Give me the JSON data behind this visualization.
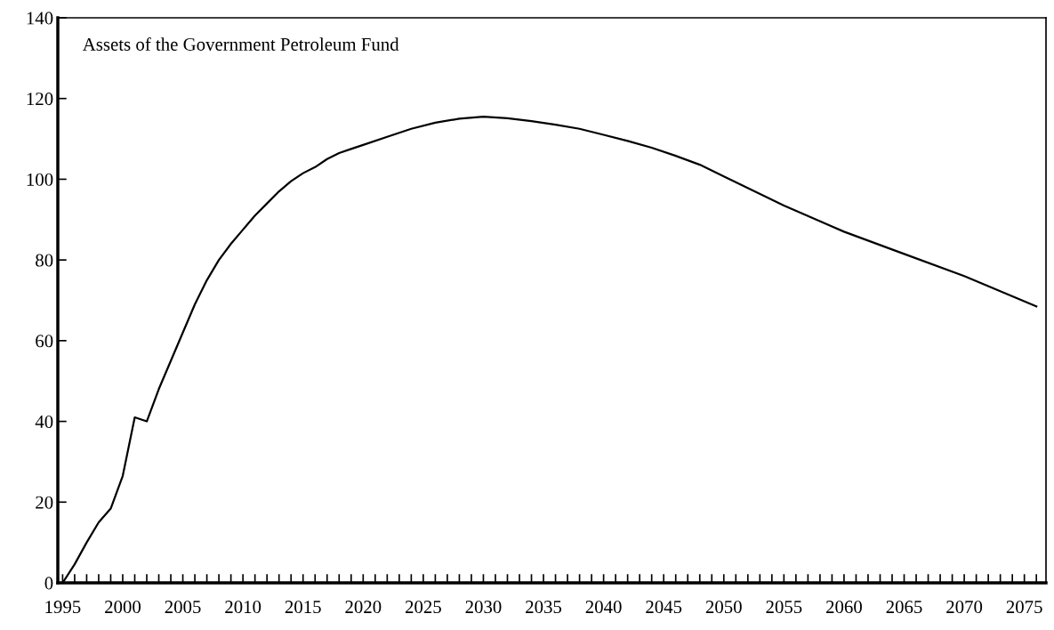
{
  "chart_data": {
    "type": "line",
    "title": "Assets of the Government Petroleum Fund",
    "x": [
      1995,
      1996,
      1997,
      1998,
      1999,
      2000,
      2001,
      2002,
      2003,
      2004,
      2005,
      2006,
      2007,
      2008,
      2009,
      2010,
      2011,
      2012,
      2013,
      2014,
      2015,
      2016,
      2017,
      2018,
      2019,
      2020,
      2022,
      2024,
      2026,
      2028,
      2030,
      2032,
      2034,
      2036,
      2038,
      2040,
      2042,
      2044,
      2046,
      2048,
      2050,
      2055,
      2060,
      2065,
      2070,
      2076
    ],
    "series": [
      {
        "color": "#000000",
        "values": [
          0,
          4.6,
          10,
          15,
          18.4,
          26.5,
          41,
          40,
          48,
          55,
          62,
          69,
          75,
          80,
          84,
          87.5,
          91,
          94,
          97,
          99.5,
          101.5,
          103,
          105,
          106.5,
          107.5,
          108.5,
          110.5,
          112.5,
          114,
          115,
          115.5,
          115.1,
          114.4,
          113.5,
          112.5,
          111,
          109.5,
          107.8,
          105.8,
          103.6,
          100.7,
          93.5,
          87,
          81.5,
          76,
          68.5
        ]
      }
    ],
    "xlim": [
      1994.6,
      2076.8
    ],
    "ylim": [
      0,
      140
    ],
    "xticks": [
      1995,
      {
        "value": 1996,
        "label": null
      },
      {
        "value": 1997,
        "label": null
      },
      {
        "value": 1998,
        "label": null
      },
      {
        "value": 1999,
        "label": null
      },
      2000,
      {
        "value": 2001,
        "label": null
      },
      {
        "value": 2002,
        "label": null
      },
      {
        "value": 2003,
        "label": null
      },
      {
        "value": 2004,
        "label": null
      },
      2005,
      {
        "value": 2006,
        "label": null
      },
      {
        "value": 2007,
        "label": null
      },
      {
        "value": 2008,
        "label": null
      },
      {
        "value": 2009,
        "label": null
      },
      2010,
      {
        "value": 2011,
        "label": null
      },
      {
        "value": 2012,
        "label": null
      },
      {
        "value": 2013,
        "label": null
      },
      {
        "value": 2014,
        "label": null
      },
      2015,
      {
        "value": 2016,
        "label": null
      },
      {
        "value": 2017,
        "label": null
      },
      {
        "value": 2018,
        "label": null
      },
      {
        "value": 2019,
        "label": null
      },
      2020,
      {
        "value": 2021,
        "label": null
      },
      {
        "value": 2022,
        "label": null
      },
      {
        "value": 2023,
        "label": null
      },
      {
        "value": 2024,
        "label": null
      },
      2025,
      {
        "value": 2026,
        "label": null
      },
      {
        "value": 2027,
        "label": null
      },
      {
        "value": 2028,
        "label": null
      },
      {
        "value": 2029,
        "label": null
      },
      2030,
      {
        "value": 2031,
        "label": null
      },
      {
        "value": 2032,
        "label": null
      },
      {
        "value": 2033,
        "label": null
      },
      {
        "value": 2034,
        "label": null
      },
      2035,
      {
        "value": 2036,
        "label": null
      },
      {
        "value": 2037,
        "label": null
      },
      {
        "value": 2038,
        "label": null
      },
      {
        "value": 2039,
        "label": null
      },
      2040,
      {
        "value": 2041,
        "label": null
      },
      {
        "value": 2042,
        "label": null
      },
      {
        "value": 2043,
        "label": null
      },
      {
        "value": 2044,
        "label": null
      },
      2045,
      {
        "value": 2046,
        "label": null
      },
      {
        "value": 2047,
        "label": null
      },
      {
        "value": 2048,
        "label": null
      },
      {
        "value": 2049,
        "label": null
      },
      2050,
      {
        "value": 2051,
        "label": null
      },
      {
        "value": 2052,
        "label": null
      },
      {
        "value": 2053,
        "label": null
      },
      {
        "value": 2054,
        "label": null
      },
      2055,
      {
        "value": 2056,
        "label": null
      },
      {
        "value": 2057,
        "label": null
      },
      {
        "value": 2058,
        "label": null
      },
      {
        "value": 2059,
        "label": null
      },
      2060,
      {
        "value": 2061,
        "label": null
      },
      {
        "value": 2062,
        "label": null
      },
      {
        "value": 2063,
        "label": null
      },
      {
        "value": 2064,
        "label": null
      },
      2065,
      {
        "value": 2066,
        "label": null
      },
      {
        "value": 2067,
        "label": null
      },
      {
        "value": 2068,
        "label": null
      },
      {
        "value": 2069,
        "label": null
      },
      2070,
      {
        "value": 2071,
        "label": null
      },
      {
        "value": 2072,
        "label": null
      },
      {
        "value": 2073,
        "label": null
      },
      {
        "value": 2074,
        "label": null
      },
      2075,
      {
        "value": 2076,
        "label": null
      }
    ],
    "yticks": [
      0,
      20,
      40,
      60,
      80,
      100,
      120,
      140
    ],
    "grid": false,
    "marker": "none",
    "line_style": "solid"
  }
}
